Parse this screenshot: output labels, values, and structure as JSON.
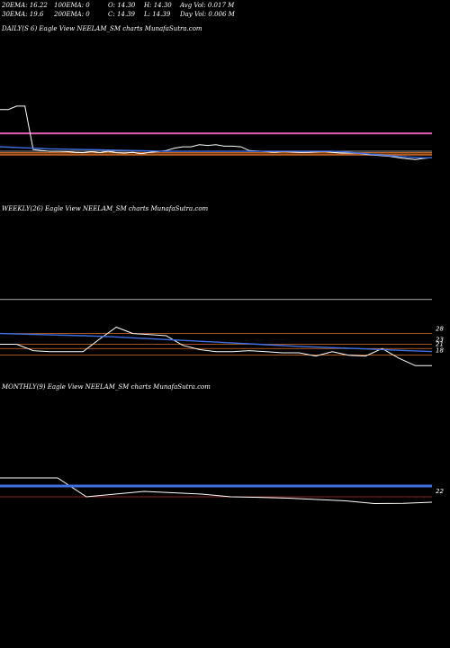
{
  "header": {
    "ema20": "20EMA: 16.22",
    "ema30": "30EMA: 19.6",
    "ema100": "100EMA: 0",
    "ema200": "200EMA: 0",
    "open": "O: 14.30",
    "close": "C: 14.39",
    "high": "H: 14.30",
    "low": "L: 14.39",
    "avg_vol": "Avg Vol: 0.017  M",
    "day_vol": "Day Vol: 0.006  M"
  },
  "colors": {
    "background": "#000000",
    "price": "#ffffff",
    "ema_blue": "#3f6fe0",
    "pink_line": "#e060b0",
    "orange_line": "#d9722a",
    "grey_line": "#8a8a8a",
    "red_line": "#b03030"
  },
  "chart_data": [
    {
      "type": "line",
      "panel": "daily",
      "label": "DAILY(S           6) Eagle   View  NEELAM_SM charts MunafaSutra.com",
      "series": [
        {
          "values": [
            28.5,
            28.5,
            29.5,
            29.5,
            16.8,
            16.5,
            16.3,
            16.3,
            16.2,
            16.0,
            15.9,
            16.2,
            15.9,
            16.3,
            15.9,
            15.8,
            16.0,
            15.6,
            16.0,
            16.2,
            16.5,
            17.2,
            17.6,
            17.6,
            18.2,
            18.0,
            18.2,
            17.8,
            17.8,
            17.6,
            16.5,
            16.4,
            16.2,
            16.0,
            16.2,
            16.1,
            16.0,
            16.0,
            16.1,
            16.2,
            16.0,
            15.8,
            15.8,
            15.7,
            15.4,
            15.2,
            15.0,
            14.8,
            14.4,
            14.1,
            13.9,
            14.2,
            14.4
          ]
        },
        {
          "values": [
            17.6,
            17.5,
            17.4,
            17.3,
            17.2,
            17.1,
            17.0,
            16.95,
            16.9,
            16.85,
            16.8,
            16.75,
            16.7,
            16.65,
            16.6,
            16.55,
            16.5,
            16.45,
            16.4,
            16.35,
            16.3,
            16.3,
            16.3,
            16.3,
            16.3,
            16.3,
            16.3,
            16.3,
            16.3,
            16.3,
            16.3,
            16.3,
            16.3,
            16.3,
            16.3,
            16.3,
            16.3,
            16.3,
            16.3,
            16.3,
            16.3,
            16.2,
            16.0,
            15.8,
            15.6,
            15.4,
            15.2,
            15.0,
            14.8,
            14.6,
            14.5,
            14.4,
            14.4
          ]
        }
      ],
      "hlines": [
        21.5,
        16.3,
        15.9,
        15.5,
        15.2
      ],
      "ylim": [
        0,
        50
      ]
    },
    {
      "type": "line",
      "panel": "weekly",
      "label": "WEEKLY(26) Eagle   View  NEELAM_SM charts MunafaSutra.com",
      "series": [
        {
          "values": [
            20.0,
            20.0,
            17.0,
            16.5,
            16.5,
            16.5,
            22.5,
            28.0,
            25.0,
            24.5,
            24.0,
            19.5,
            17.5,
            16.5,
            16.5,
            17.0,
            16.5,
            16.0,
            16.0,
            14.5,
            16.5,
            14.8,
            14.5,
            18.0,
            13.5,
            10.0,
            10.0
          ]
        },
        {
          "values": [
            25.0,
            24.8,
            24.6,
            24.4,
            24.2,
            24.0,
            23.7,
            23.4,
            23.0,
            22.6,
            22.2,
            21.8,
            21.4,
            21.0,
            20.6,
            20.2,
            19.8,
            19.4,
            19.0,
            18.7,
            18.4,
            18.1,
            17.8,
            17.5,
            17.2,
            16.9,
            16.6
          ]
        }
      ],
      "hlines": [
        41.0,
        25.0,
        20.0,
        18.0,
        15.0
      ],
      "tick_labels": [
        "28",
        "23",
        "21",
        "18"
      ],
      "ylim": [
        0,
        80
      ]
    },
    {
      "type": "line",
      "panel": "monthly",
      "label": "MONTHLY(9) Eagle   View  NEELAM_SM charts MunafaSutra.com",
      "series": [
        {
          "values": [
            29.0,
            29.0,
            29.0,
            22.0,
            23.0,
            24.0,
            23.5,
            23.0,
            22.0,
            21.8,
            21.5,
            21.0,
            20.5,
            19.5,
            19.6,
            20.0
          ]
        },
        {
          "values": [
            26.0,
            26.0,
            26.0,
            26.0,
            26.0,
            26.0,
            26.0,
            26.0,
            26.0,
            26.0,
            26.0,
            26.0,
            26.0,
            26.0,
            26.0,
            26.0
          ]
        }
      ],
      "hlines": [
        22.0
      ],
      "tick_labels": [
        "22"
      ],
      "ylim": [
        0,
        60
      ]
    }
  ]
}
